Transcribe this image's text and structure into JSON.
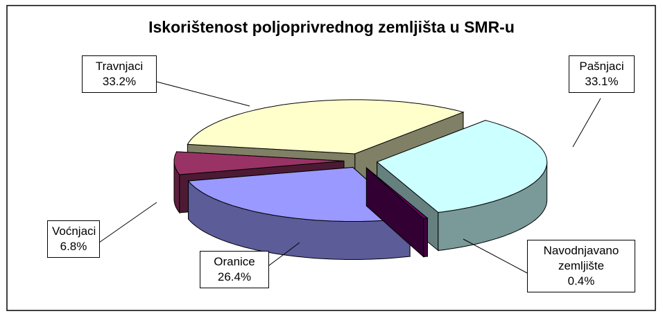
{
  "chart_data": {
    "type": "pie",
    "title": "Iskorištenost poljoprivrednog zemljišta u SMR-u",
    "categories": [
      "Travnjaci",
      "Pašnjaci",
      "Navodnjavano zemljište",
      "Oranice",
      "Voćnjaci"
    ],
    "values": [
      33.2,
      33.1,
      0.4,
      26.4,
      6.8
    ],
    "value_labels": [
      "33.2%",
      "33.1%",
      "0.4%",
      "26.4%",
      "6.8%"
    ],
    "colors": [
      "#ffffcc",
      "#ccffff",
      "#660066",
      "#9999ff",
      "#993366"
    ]
  }
}
